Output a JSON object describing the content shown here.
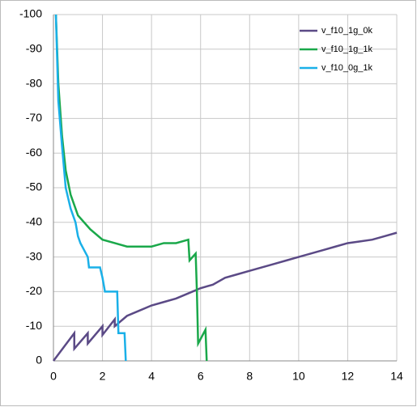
{
  "chart_data": {
    "type": "line",
    "xlim": [
      0,
      14
    ],
    "xticks": [
      0,
      2,
      4,
      6,
      8,
      10,
      12,
      14
    ],
    "ylim": [
      0,
      -100
    ],
    "yticks": [
      0,
      -10,
      -20,
      -30,
      -40,
      -50,
      -60,
      -70,
      -80,
      -90,
      -100
    ],
    "grid": true,
    "legend": "top-right",
    "series": [
      {
        "name": "v_f10_1g_0k",
        "color": "#5b4a86",
        "x": [
          0,
          0.85,
          0.85,
          1.4,
          1.4,
          2.0,
          2.0,
          2.5,
          2.5,
          3.0,
          3.5,
          4.0,
          4.5,
          5.0,
          5.5,
          6.0,
          6.5,
          7.0,
          7.5,
          8.0,
          8.5,
          9.0,
          9.5,
          10.0,
          10.5,
          11.0,
          11.5,
          12.0,
          12.5,
          13.0,
          13.5,
          14.0
        ],
        "values": [
          0,
          -8,
          -3.5,
          -8,
          -5,
          -10,
          -7.5,
          -12,
          -10,
          -13,
          -14.5,
          -16,
          -17,
          -18,
          -19.5,
          -21,
          -22,
          -24,
          -25,
          -26,
          -27,
          -28,
          -29,
          -30,
          -31,
          -32,
          -33,
          -34,
          -34.5,
          -35,
          -36,
          -37
        ]
      },
      {
        "name": "v_f10_1g_1k",
        "color": "#1aa84a",
        "x": [
          0.1,
          0.2,
          0.35,
          0.5,
          0.7,
          1.0,
          1.5,
          2.0,
          2.5,
          3.0,
          3.5,
          4.0,
          4.5,
          5.0,
          5.5,
          5.55,
          5.8,
          5.85,
          5.9,
          6.2,
          6.25
        ],
        "values": [
          -100,
          -80,
          -65,
          -55,
          -48,
          -42,
          -38,
          -35,
          -34,
          -33,
          -33,
          -33,
          -34,
          -34,
          -35,
          -29,
          -31,
          -20,
          -5,
          -9,
          0
        ]
      },
      {
        "name": "v_f10_0g_1k",
        "color": "#1ab0e8",
        "x": [
          0.1,
          0.2,
          0.35,
          0.5,
          0.7,
          0.9,
          1.0,
          1.1,
          1.4,
          1.45,
          1.9,
          2.0,
          2.1,
          2.6,
          2.65,
          2.9,
          2.95
        ],
        "values": [
          -100,
          -75,
          -62,
          -50,
          -44,
          -40,
          -36,
          -34,
          -30,
          -27,
          -27,
          -24,
          -20,
          -20,
          -8,
          -8,
          0
        ]
      }
    ]
  }
}
